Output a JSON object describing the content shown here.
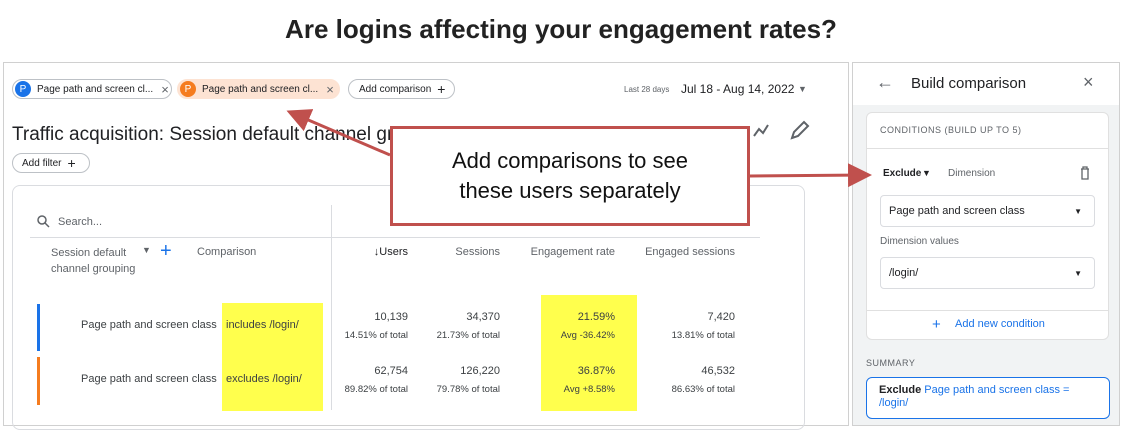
{
  "title": "Are logins affecting your engagement rates?",
  "toolbar": {
    "chips": [
      {
        "icon": "P",
        "label": "Page path and screen cl..."
      },
      {
        "icon": "P",
        "label": "Page path and screen cl..."
      }
    ],
    "add_comparison": "Add comparison",
    "date_range_label": "Last 28 days",
    "date_range": "Jul 18 - Aug 14, 2022"
  },
  "report": {
    "title": "Traffic acquisition: Session default channel gro",
    "add_filter": "Add filter",
    "search_placeholder": "Search...",
    "columns": [
      "Session default channel grouping",
      "Comparison",
      "↓Users",
      "Sessions",
      "Engagement rate",
      "Engaged sessions"
    ],
    "rows": [
      {
        "dimension": "Page path and screen class",
        "condition": "includes /login/",
        "cells": [
          [
            "10,139",
            "14.51% of total"
          ],
          [
            "34,370",
            "21.73% of total"
          ],
          [
            "21.59%",
            "Avg -36.42%"
          ],
          [
            "7,420",
            "13.81% of total"
          ]
        ]
      },
      {
        "dimension": "Page path and screen class",
        "condition": "excludes /login/",
        "cells": [
          [
            "62,754",
            "89.82% of total"
          ],
          [
            "126,220",
            "79.78% of total"
          ],
          [
            "36.87%",
            "Avg +8.58%"
          ],
          [
            "46,532",
            "86.63% of total"
          ]
        ]
      }
    ]
  },
  "callout": "Add comparisons to see these users separately",
  "panel": {
    "title": "Build comparison",
    "conditions_heading": "CONDITIONS (BUILD UP TO 5)",
    "mode": "Exclude",
    "dimension_label": "Dimension",
    "dimension_value": "Page path and screen class",
    "values_label": "Dimension values",
    "values_value": "/login/",
    "add_condition": "Add new condition",
    "summary_heading": "SUMMARY",
    "summary_mode": "Exclude",
    "summary_text": "Page path and screen class = /login/"
  }
}
